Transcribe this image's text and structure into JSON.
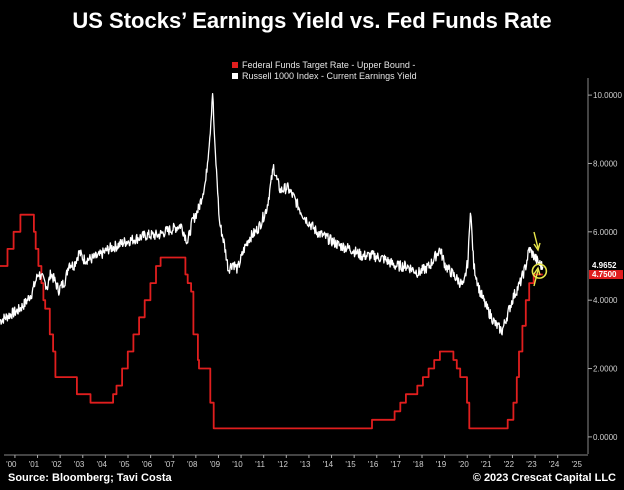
{
  "title": "US Stocks’ Earnings Yield vs. Fed Funds Rate",
  "footer": {
    "source": "Source: Bloomberg; Tavi Costa",
    "copyright": "© 2023 Crescat Capital LLC"
  },
  "colors": {
    "background": "#000000",
    "red_series": "#e01e1e",
    "white_series": "#ffffff",
    "annotation": "#e8e64a"
  },
  "chart_data": {
    "type": "line",
    "title": "US Stocks’ Earnings Yield vs. Fed Funds Rate",
    "xlabel": "",
    "ylabel": "",
    "x_ticks": [
      "'00",
      "'01",
      "'02",
      "'03",
      "'04",
      "'05",
      "'06",
      "'07",
      "'08",
      "'09",
      "'10",
      "'11",
      "'12",
      "'13",
      "'14",
      "'15",
      "'16",
      "'17",
      "'18",
      "'19",
      "'20",
      "'21",
      "'22",
      "'23",
      "'24",
      "'25"
    ],
    "y_ticks": [
      "0.0000",
      "2.0000",
      "4.0000",
      "6.0000",
      "8.0000",
      "10.0000"
    ],
    "xlim": [
      1999.5,
      2025.5
    ],
    "ylim": [
      -0.5,
      10.5
    ],
    "grid": false,
    "legend_position": "top-center",
    "series": [
      {
        "name": "Federal Funds Target Rate - Upper Bound -",
        "color": "#e01e1e",
        "end_label": "4.7500",
        "step": true,
        "x": [
          1999.5,
          1999.83,
          2000.1,
          2000.4,
          2001.0,
          2001.08,
          2001.2,
          2001.33,
          2001.42,
          2001.5,
          2001.7,
          2001.85,
          2001.95,
          2002.9,
          2003.5,
          2004.5,
          2004.65,
          2004.9,
          2005.15,
          2005.4,
          2005.65,
          2005.9,
          2006.15,
          2006.4,
          2006.6,
          2007.7,
          2007.8,
          2007.95,
          2008.05,
          2008.25,
          2008.3,
          2008.8,
          2008.95,
          2015.95,
          2016.95,
          2017.2,
          2017.45,
          2017.95,
          2018.2,
          2018.45,
          2018.7,
          2018.95,
          2019.55,
          2019.7,
          2019.85,
          2020.15,
          2020.25,
          2021.95,
          2022.2,
          2022.35,
          2022.45,
          2022.6,
          2022.75,
          2022.9,
          2023.1,
          2023.25,
          2023.5
        ],
        "values": [
          5.0,
          5.5,
          6.0,
          6.5,
          6.0,
          5.5,
          5.0,
          4.5,
          4.0,
          3.75,
          3.0,
          2.5,
          1.75,
          1.25,
          1.0,
          1.25,
          1.5,
          2.0,
          2.5,
          3.0,
          3.5,
          4.0,
          4.5,
          5.0,
          5.25,
          4.75,
          4.5,
          4.25,
          3.0,
          2.25,
          2.0,
          1.0,
          0.25,
          0.5,
          0.75,
          1.0,
          1.25,
          1.5,
          1.75,
          2.0,
          2.25,
          2.5,
          2.25,
          2.0,
          1.75,
          1.0,
          0.25,
          0.5,
          1.0,
          1.75,
          2.5,
          3.25,
          4.0,
          4.5,
          4.75,
          4.75,
          4.75
        ]
      },
      {
        "name": "Russell 1000 Index - Current Earnings Yield",
        "color": "#ffffff",
        "end_label": "4.9652",
        "x": [
          1999.5,
          2000.0,
          2000.3,
          2000.6,
          2000.9,
          2001.2,
          2001.6,
          2001.75,
          2002.1,
          2002.4,
          2002.55,
          2002.75,
          2003.0,
          2003.2,
          2003.5,
          2003.9,
          2004.3,
          2004.7,
          2005.0,
          2005.5,
          2006.0,
          2006.5,
          2006.8,
          2007.2,
          2007.5,
          2007.8,
          2008.0,
          2008.3,
          2008.6,
          2008.8,
          2008.9,
          2009.0,
          2009.1,
          2009.2,
          2009.4,
          2009.6,
          2009.8,
          2010.0,
          2010.3,
          2010.5,
          2010.8,
          2011.0,
          2011.3,
          2011.6,
          2011.75,
          2011.9,
          2012.2,
          2012.5,
          2012.8,
          2013.0,
          2013.5,
          2014.0,
          2014.5,
          2015.0,
          2015.5,
          2016.0,
          2016.5,
          2017.0,
          2017.5,
          2018.0,
          2018.5,
          2018.95,
          2019.2,
          2019.6,
          2020.0,
          2020.2,
          2020.3,
          2020.45,
          2020.7,
          2021.0,
          2021.4,
          2021.7,
          2021.9,
          2022.2,
          2022.5,
          2022.75,
          2022.9,
          2023.1,
          2023.3,
          2023.5
        ],
        "values": [
          3.4,
          3.6,
          3.7,
          3.9,
          4.2,
          4.8,
          4.4,
          4.8,
          4.3,
          4.6,
          5.1,
          5.0,
          5.4,
          5.2,
          5.2,
          5.3,
          5.5,
          5.6,
          5.7,
          5.8,
          5.9,
          5.9,
          6.0,
          6.1,
          6.2,
          5.7,
          6.3,
          6.7,
          7.5,
          9.0,
          10.1,
          8.5,
          7.5,
          6.3,
          5.7,
          4.9,
          5.1,
          4.9,
          5.5,
          5.8,
          6.0,
          6.2,
          6.7,
          7.9,
          7.5,
          7.2,
          7.3,
          7.0,
          6.6,
          6.4,
          6.0,
          5.8,
          5.6,
          5.5,
          5.3,
          5.3,
          5.2,
          5.0,
          5.0,
          4.8,
          5.0,
          5.5,
          5.0,
          4.7,
          4.4,
          5.2,
          6.7,
          5.0,
          4.3,
          3.8,
          3.3,
          3.1,
          3.5,
          4.1,
          4.5,
          5.0,
          5.5,
          5.3,
          5.1,
          4.97
        ]
      }
    ],
    "annotations": [
      "circle-at-crossover",
      "arrow-down",
      "arrow-up"
    ]
  }
}
